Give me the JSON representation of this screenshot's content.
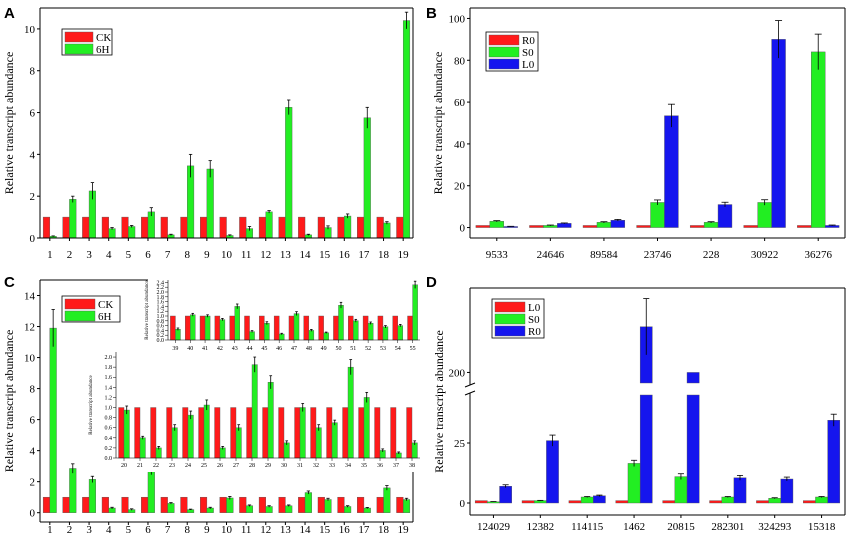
{
  "figure": {
    "panel_labels": [
      "A",
      "B",
      "C",
      "D"
    ]
  },
  "colors": {
    "red": "#ff1a1a",
    "green": "#22ee22",
    "blue": "#1515ee",
    "axis": "#000000"
  },
  "chart_data": [
    {
      "id": "A",
      "type": "bar",
      "ylabel": "Relative transcript abundance",
      "xlabel": "",
      "ylim": [
        0,
        11
      ],
      "yticks": [
        0,
        2,
        4,
        6,
        8,
        10
      ],
      "categories": [
        "1",
        "2",
        "3",
        "4",
        "5",
        "6",
        "7",
        "8",
        "9",
        "10",
        "11",
        "12",
        "13",
        "14",
        "15",
        "16",
        "17",
        "18",
        "19"
      ],
      "legend": {
        "position": "top-left"
      },
      "series": [
        {
          "name": "CK",
          "color": "red",
          "values": [
            1,
            1,
            1,
            1,
            1,
            1,
            1,
            1,
            1,
            1,
            1,
            1,
            1,
            1,
            1,
            1,
            1,
            1,
            1
          ],
          "errors": [
            0,
            0,
            0,
            0,
            0,
            0,
            0,
            0,
            0,
            0,
            0,
            0,
            0,
            0,
            0,
            0,
            0,
            0,
            0
          ]
        },
        {
          "name": "6H",
          "color": "green",
          "values": [
            0.08,
            1.85,
            2.25,
            0.45,
            0.55,
            1.25,
            0.15,
            3.45,
            3.3,
            0.12,
            0.45,
            1.25,
            6.25,
            0.15,
            0.5,
            1.05,
            5.75,
            0.72,
            10.4
          ],
          "errors": [
            0.02,
            0.15,
            0.4,
            0.05,
            0.05,
            0.2,
            0.03,
            0.55,
            0.4,
            0.03,
            0.1,
            0.06,
            0.35,
            0.03,
            0.08,
            0.1,
            0.5,
            0.06,
            0.4
          ]
        }
      ]
    },
    {
      "id": "B",
      "type": "bar",
      "ylabel": "Relative transcript abundance",
      "xlabel": "",
      "ylim": [
        -5,
        105
      ],
      "yticks": [
        0,
        20,
        40,
        60,
        80,
        100
      ],
      "categories": [
        "9533",
        "24646",
        "89584",
        "23746",
        "228",
        "30922",
        "36276"
      ],
      "legend": {
        "position": "top-left"
      },
      "series": [
        {
          "name": "R0",
          "color": "red",
          "values": [
            1,
            1,
            1,
            1,
            1,
            1,
            1
          ],
          "errors": [
            0,
            0,
            0,
            0,
            0,
            0,
            0
          ]
        },
        {
          "name": "S0",
          "color": "green",
          "values": [
            3,
            1,
            2.5,
            12,
            2.5,
            12,
            84
          ],
          "errors": [
            0.3,
            0.2,
            0.3,
            1.2,
            0.3,
            1.3,
            8.5
          ]
        },
        {
          "name": "L0",
          "color": "blue",
          "values": [
            0.5,
            2,
            3.5,
            53.5,
            11,
            90,
            1
          ],
          "errors": [
            0.1,
            0.2,
            0.4,
            5.5,
            1.1,
            9,
            0.2
          ]
        }
      ]
    },
    {
      "id": "C",
      "type": "bar",
      "ylabel": "Relative transcript abundance",
      "xlabel": "",
      "ylim": [
        -0.6,
        15
      ],
      "yticks": [
        0,
        2,
        4,
        6,
        8,
        10,
        12,
        14
      ],
      "categories": [
        "1",
        "2",
        "3",
        "4",
        "5",
        "6",
        "7",
        "8",
        "9",
        "10",
        "11",
        "12",
        "13",
        "14",
        "15",
        "16",
        "17",
        "18",
        "19"
      ],
      "legend": {
        "position": "top-center"
      },
      "series": [
        {
          "name": "CK",
          "color": "red",
          "values": [
            1,
            1,
            1,
            1,
            1,
            1,
            1,
            1,
            1,
            1,
            1,
            1,
            1,
            1,
            1,
            1,
            1,
            1,
            1
          ],
          "errors": [
            0,
            0,
            0,
            0,
            0,
            0,
            0,
            0,
            0,
            0,
            0,
            0,
            0,
            0,
            0,
            0,
            0,
            0,
            0
          ]
        },
        {
          "name": "6H",
          "color": "green",
          "values": [
            11.9,
            2.85,
            2.15,
            0.3,
            0.2,
            2.75,
            0.6,
            0.2,
            0.3,
            0.95,
            0.45,
            0.4,
            0.45,
            1.3,
            0.85,
            0.4,
            0.3,
            1.6,
            0.85
          ],
          "errors": [
            1.2,
            0.3,
            0.2,
            0.05,
            0.05,
            0.3,
            0.05,
            0.03,
            0.05,
            0.1,
            0.05,
            0.05,
            0.05,
            0.1,
            0.08,
            0.05,
            0.04,
            0.15,
            0.08
          ]
        }
      ]
    },
    {
      "id": "C-inset-1",
      "type": "bar",
      "ylabel": "Relative transcript abundance",
      "xlabel": "",
      "ylim": [
        0,
        2.1
      ],
      "yticks": [
        0.0,
        0.2,
        0.4,
        0.6,
        0.8,
        1.0,
        1.2,
        1.4,
        1.6,
        1.8,
        2.0
      ],
      "categories": [
        "20",
        "21",
        "22",
        "23",
        "24",
        "25",
        "26",
        "27",
        "28",
        "29",
        "30",
        "31",
        "32",
        "33",
        "34",
        "35",
        "36",
        "37",
        "38"
      ],
      "legend": {
        "position": "none"
      },
      "series": [
        {
          "name": "CK",
          "color": "red",
          "values": [
            1,
            1,
            1,
            1,
            1,
            1,
            1,
            1,
            1,
            1,
            1,
            1,
            1,
            1,
            1,
            1,
            1,
            1,
            1
          ],
          "errors": [
            0,
            0,
            0,
            0,
            0,
            0,
            0,
            0,
            0,
            0,
            0,
            0,
            0,
            0,
            0,
            0,
            0,
            0,
            0
          ]
        },
        {
          "name": "6H",
          "color": "green",
          "values": [
            0.95,
            0.4,
            0.2,
            0.6,
            0.85,
            1.05,
            0.2,
            0.6,
            1.85,
            1.5,
            0.3,
            1.0,
            0.6,
            0.7,
            1.8,
            1.2,
            0.15,
            0.1,
            0.3
          ],
          "errors": [
            0.08,
            0.03,
            0.03,
            0.06,
            0.08,
            0.1,
            0.03,
            0.06,
            0.15,
            0.13,
            0.04,
            0.08,
            0.06,
            0.05,
            0.15,
            0.1,
            0.03,
            0.02,
            0.04
          ]
        }
      ]
    },
    {
      "id": "C-inset-2",
      "type": "bar",
      "ylabel": "Relative transcript abundance",
      "xlabel": "",
      "ylim": [
        0,
        2.5
      ],
      "yticks": [
        0.0,
        0.2,
        0.4,
        0.6,
        0.8,
        1.0,
        1.2,
        1.4,
        1.6,
        1.8,
        2.0,
        2.2,
        2.4
      ],
      "categories": [
        "39",
        "40",
        "41",
        "42",
        "43",
        "44",
        "45",
        "46",
        "47",
        "48",
        "49",
        "50",
        "51",
        "52",
        "53",
        "54",
        "55"
      ],
      "legend": {
        "position": "none"
      },
      "series": [
        {
          "name": "CK",
          "color": "red",
          "values": [
            1,
            1,
            1,
            1,
            1,
            1,
            1,
            1,
            1,
            1,
            1,
            1,
            1,
            1,
            1,
            1,
            1
          ],
          "errors": [
            0,
            0,
            0,
            0,
            0,
            0,
            0,
            0,
            0,
            0,
            0,
            0,
            0,
            0,
            0,
            0,
            0
          ]
        },
        {
          "name": "6H",
          "color": "green",
          "values": [
            0.45,
            1.05,
            1.0,
            0.85,
            1.4,
            0.35,
            0.7,
            0.25,
            1.1,
            0.4,
            0.3,
            1.45,
            0.8,
            0.7,
            0.55,
            0.6,
            2.3
          ],
          "errors": [
            0.05,
            0.06,
            0.05,
            0.05,
            0.1,
            0.04,
            0.06,
            0.03,
            0.08,
            0.04,
            0.03,
            0.12,
            0.06,
            0.05,
            0.05,
            0.05,
            0.15
          ]
        }
      ]
    },
    {
      "id": "D",
      "type": "bar",
      "ylabel": "Relative transcript abundance",
      "xlabel": "",
      "axis_break": {
        "lower": [
          -5,
          45
        ],
        "upper": [
          185,
          320
        ],
        "break_at": 45
      },
      "yticks": [
        0,
        25,
        200
      ],
      "categories": [
        "124029",
        "12382",
        "114115",
        "1462",
        "20815",
        "282301",
        "324293",
        "15318"
      ],
      "legend": {
        "position": "top-left"
      },
      "series": [
        {
          "name": "L0",
          "color": "red",
          "values": [
            1,
            1,
            1,
            1,
            1,
            1,
            1,
            1
          ],
          "errors": [
            0,
            0,
            0,
            0,
            0,
            0,
            0,
            0
          ]
        },
        {
          "name": "S0",
          "color": "green",
          "values": [
            0.5,
            1,
            2.5,
            16.5,
            11,
            2.5,
            2,
            2.5
          ],
          "errors": [
            0.1,
            0.1,
            0.2,
            1.3,
            1.2,
            0.2,
            0.2,
            0.2
          ]
        },
        {
          "name": "R0",
          "color": "blue",
          "values": [
            7,
            26,
            3,
            265,
            200,
            10.5,
            10,
            34.5
          ],
          "errors": [
            0.6,
            2.3,
            0.3,
            40,
            0,
            1,
            0.8,
            2.5
          ]
        }
      ]
    }
  ]
}
